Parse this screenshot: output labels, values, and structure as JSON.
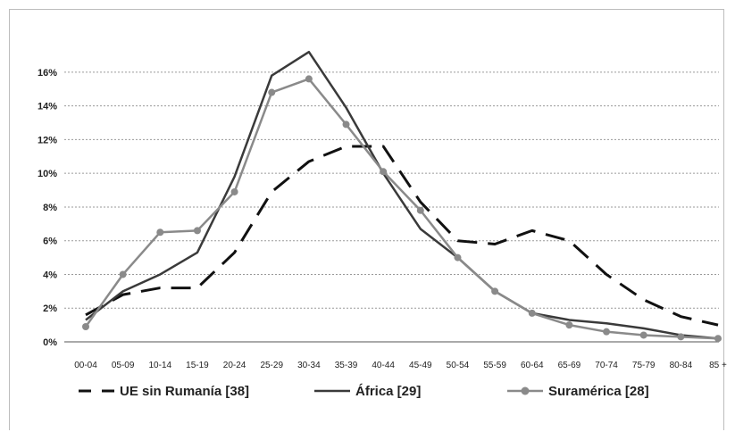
{
  "chart_data": {
    "type": "line",
    "categories": [
      "00-04",
      "05-09",
      "10-14",
      "15-19",
      "20-24",
      "25-29",
      "30-34",
      "35-39",
      "40-44",
      "45-49",
      "50-54",
      "55-59",
      "60-64",
      "65-69",
      "70-74",
      "75-79",
      "80-84",
      "85 +"
    ],
    "y_ticks": [
      "0%",
      "2%",
      "4%",
      "6%",
      "8%",
      "10%",
      "12%",
      "14%",
      "16%"
    ],
    "ylim": [
      0,
      17
    ],
    "grid": true,
    "legend_position": "bottom",
    "series": [
      {
        "name": "UE sin Rumanía [38]",
        "style": "dashed",
        "color": "#111111",
        "values": [
          1.6,
          2.8,
          3.2,
          3.2,
          5.3,
          8.9,
          10.7,
          11.6,
          11.6,
          8.3,
          6.0,
          5.8,
          6.6,
          6.0,
          4.0,
          2.5,
          1.5,
          1.0
        ]
      },
      {
        "name": "África [29]",
        "style": "solid",
        "color": "#3a3a3a",
        "values": [
          1.3,
          3.0,
          4.0,
          5.3,
          9.8,
          15.8,
          17.2,
          13.9,
          10.0,
          6.7,
          5.0,
          3.0,
          1.7,
          1.3,
          1.1,
          0.8,
          0.4,
          0.2
        ]
      },
      {
        "name": "Suramérica [28]",
        "style": "markers",
        "color": "#8a8a8a",
        "values": [
          0.9,
          4.0,
          6.5,
          6.6,
          8.9,
          14.8,
          15.6,
          12.9,
          10.1,
          7.8,
          5.0,
          3.0,
          1.7,
          1.0,
          0.6,
          0.4,
          0.3,
          0.2
        ]
      }
    ]
  }
}
